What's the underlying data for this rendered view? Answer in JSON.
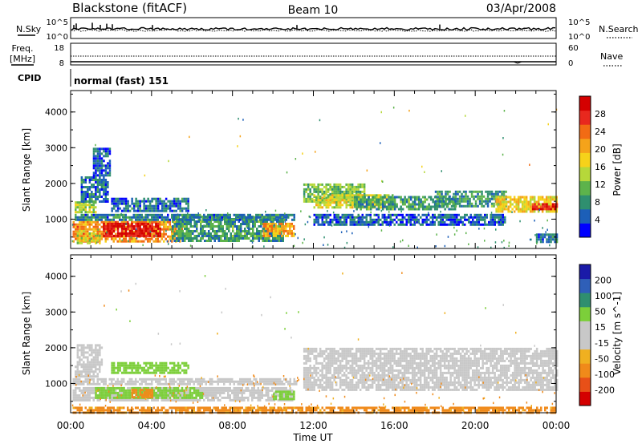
{
  "header": {
    "station": "Blackstone (fitACF)",
    "beam": "Beam 10",
    "date": "03/Apr/2008"
  },
  "noise_panel": {
    "left_label": "N.Sky",
    "right_label": "N.Search",
    "left_ticks": [
      "10^5",
      "10^0"
    ],
    "right_ticks": [
      "10^5",
      "10^0"
    ]
  },
  "freq_panel": {
    "left_label_line1": "Freq.",
    "left_label_line2": "[MHz]",
    "right_label": "Nave",
    "left_ticks": [
      "18",
      "8"
    ],
    "right_ticks": [
      "60",
      "0"
    ]
  },
  "cpid_panel": {
    "label": "CPID",
    "text": "normal (fast) 151"
  },
  "colors": {
    "power_scale": [
      "#0000ff",
      "#1c5fb8",
      "#2f8f6f",
      "#5db34b",
      "#b6d83a",
      "#f6d21a",
      "#f5a31a",
      "#f26b14",
      "#e8281e",
      "#d40000"
    ],
    "velocity_scale": [
      "#1a1aa8",
      "#2f5fb8",
      "#2f8f6f",
      "#7ccf3a",
      "#c8c8c8",
      "#c8c8c8",
      "#f0b020",
      "#f08a1a",
      "#e85018",
      "#d40000"
    ]
  },
  "chart_data": [
    {
      "type": "heatmap",
      "name": "power",
      "ylabel": "Slant Range [km]",
      "xlim_hours": [
        0,
        24
      ],
      "ylim": [
        180,
        4600
      ],
      "yticks": [
        "1000",
        "2000",
        "3000",
        "4000"
      ],
      "colorbar": {
        "label": "Power [dB]",
        "ticks": [
          "4",
          "8",
          "12",
          "16",
          "20",
          "24",
          "28"
        ],
        "range": [
          0,
          32
        ]
      },
      "bands": [
        {
          "t0": 0.1,
          "t1": 5.5,
          "r0": 350,
          "r1": 950,
          "value": 22
        },
        {
          "t0": 1.6,
          "t1": 4.4,
          "r0": 500,
          "r1": 900,
          "value": 30
        },
        {
          "t0": 0.3,
          "t1": 1.4,
          "r0": 300,
          "r1": 700,
          "value": 16
        },
        {
          "t0": 5.0,
          "t1": 10.5,
          "r0": 400,
          "r1": 1100,
          "value": 9
        },
        {
          "t0": 9.5,
          "t1": 11.0,
          "r0": 500,
          "r1": 900,
          "value": 20
        },
        {
          "t0": 0.2,
          "t1": 11.2,
          "r0": 950,
          "r1": 1150,
          "value": 7
        },
        {
          "t0": 0.2,
          "t1": 1.2,
          "r0": 1200,
          "r1": 1500,
          "value": 14
        },
        {
          "t0": 0.5,
          "t1": 1.8,
          "r0": 1500,
          "r1": 2200,
          "value": 6
        },
        {
          "t0": 1.1,
          "t1": 1.9,
          "r0": 2200,
          "r1": 3000,
          "value": 5
        },
        {
          "t0": 2.0,
          "t1": 5.8,
          "r0": 1250,
          "r1": 1600,
          "value": 6
        },
        {
          "t0": 11.5,
          "t1": 14.5,
          "r0": 1500,
          "r1": 2000,
          "value": 12
        },
        {
          "t0": 12.0,
          "t1": 16.0,
          "r0": 1350,
          "r1": 1700,
          "value": 16
        },
        {
          "t0": 14.0,
          "t1": 19.0,
          "r0": 1300,
          "r1": 1650,
          "value": 9
        },
        {
          "t0": 12.0,
          "t1": 21.5,
          "r0": 850,
          "r1": 1150,
          "value": 5
        },
        {
          "t0": 18.0,
          "t1": 21.5,
          "r0": 1350,
          "r1": 1800,
          "value": 9
        },
        {
          "t0": 21.0,
          "t1": 24.0,
          "r0": 1200,
          "r1": 1650,
          "value": 18
        },
        {
          "t0": 22.8,
          "t1": 24.0,
          "r0": 1250,
          "r1": 1450,
          "value": 28
        },
        {
          "t0": 23.0,
          "t1": 24.0,
          "r0": 350,
          "r1": 600,
          "value": 6
        }
      ]
    },
    {
      "type": "heatmap",
      "name": "velocity",
      "ylabel": "Slant Range [km]",
      "xlabel": "Time UT",
      "xlim_hours": [
        0,
        24
      ],
      "ylim": [
        180,
        4600
      ],
      "xticks": [
        "00:00",
        "04:00",
        "08:00",
        "12:00",
        "16:00",
        "20:00",
        "00:00"
      ],
      "yticks": [
        "1000",
        "2000",
        "3000",
        "4000"
      ],
      "colorbar": {
        "label": "Velocity [m s^-1]",
        "ticks": [
          "200",
          "100",
          "50",
          "15",
          "-15",
          "-50",
          "-100",
          "-200"
        ]
      },
      "bands": [
        {
          "t0": 0.1,
          "t1": 11.2,
          "r0": 950,
          "r1": 1150,
          "value": 0
        },
        {
          "t0": 0.2,
          "t1": 1.4,
          "r0": 1200,
          "r1": 1500,
          "value": 0
        },
        {
          "t0": 0.1,
          "t1": 11.0,
          "r0": 500,
          "r1": 900,
          "value": 0
        },
        {
          "t0": 2.0,
          "t1": 5.8,
          "r0": 1300,
          "r1": 1600,
          "value": 60
        },
        {
          "t0": 1.2,
          "t1": 6.5,
          "r0": 600,
          "r1": 900,
          "value": 60
        },
        {
          "t0": 3.0,
          "t1": 4.0,
          "r0": 600,
          "r1": 850,
          "value": -60
        },
        {
          "t0": 10.0,
          "t1": 11.0,
          "r0": 550,
          "r1": 800,
          "value": 60
        },
        {
          "t0": 11.5,
          "t1": 24.0,
          "r0": 800,
          "r1": 2000,
          "value": 0
        },
        {
          "t0": 0.3,
          "t1": 1.5,
          "r0": 1500,
          "r1": 2100,
          "value": 0
        },
        {
          "t0": 0.1,
          "t1": 24.0,
          "r0": 180,
          "r1": 350,
          "value": -40
        }
      ]
    }
  ]
}
